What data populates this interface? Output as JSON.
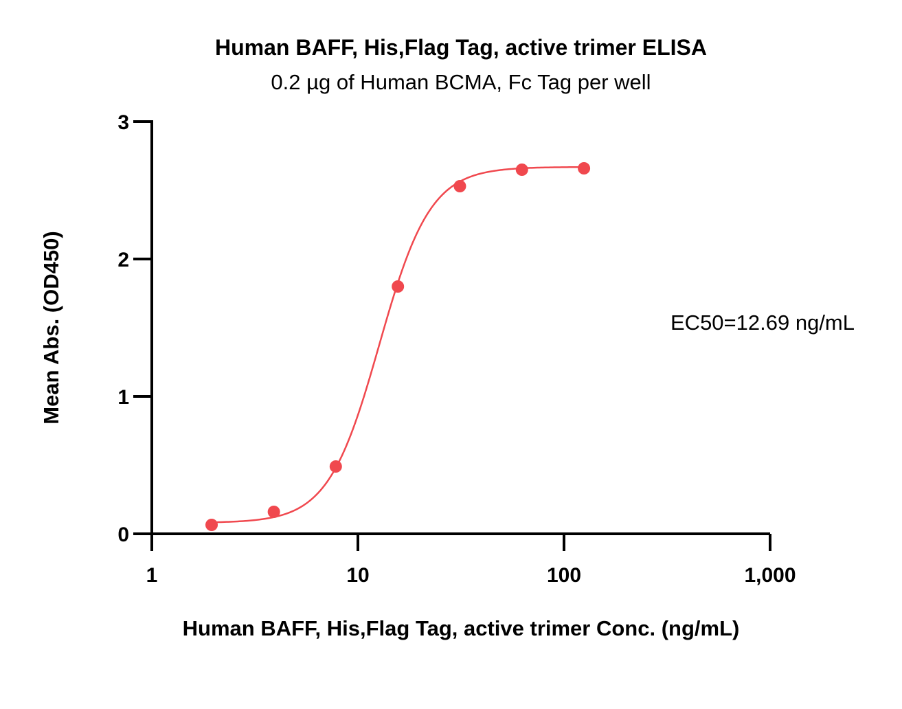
{
  "chart_data": {
    "type": "scatter",
    "title": "Human BAFF, His,Flag Tag, active trimer ELISA",
    "subtitle": "0.2 µg of Human BCMA, Fc Tag per well",
    "xlabel": "Human BAFF, His,Flag Tag, active trimer Conc. (ng/mL)",
    "ylabel": "Mean Abs. (OD450)",
    "x_scale": "log",
    "xlim": [
      1,
      1000
    ],
    "ylim": [
      0,
      3
    ],
    "x_ticks": [
      1,
      10,
      100,
      1000
    ],
    "x_tick_labels": [
      "1",
      "10",
      "100",
      "1,000"
    ],
    "y_ticks": [
      0,
      1,
      2,
      3
    ],
    "y_tick_labels": [
      "0",
      "1",
      "2",
      "3"
    ],
    "grid": false,
    "color": "#f0484e",
    "series": [
      {
        "x": [
          1.95,
          3.91,
          7.81,
          15.63,
          31.25,
          62.5,
          125
        ],
        "y": [
          0.065,
          0.16,
          0.49,
          1.8,
          2.53,
          2.65,
          2.66
        ]
      }
    ],
    "fit": {
      "model": "4PL",
      "bottom": 0.08,
      "top": 2.67,
      "ec50": 12.69,
      "hill": 3.5
    },
    "annotations": [
      {
        "text": "EC50=12.69 ng/mL"
      }
    ]
  }
}
